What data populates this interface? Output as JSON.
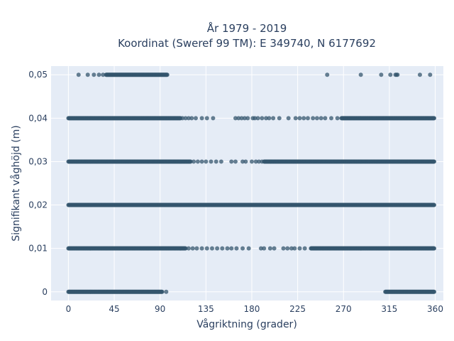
{
  "colors": {
    "plot_bg": "#e5ecf6",
    "grid": "#ffffff",
    "marker": "#34566e",
    "text": "#2a3f5f"
  },
  "chart_data": {
    "type": "scatter",
    "title_line1": "År 1979 - 2019",
    "title_line2": "Koordinat (Sweref 99 TM): E 349740, N 6177692",
    "xlabel": "Vågriktning (grader)",
    "ylabel": "Signifikant våghöjd (m)",
    "xlim": [
      -17,
      368
    ],
    "ylim": [
      -0.002,
      0.052
    ],
    "xticks": [
      0,
      45,
      90,
      135,
      180,
      225,
      270,
      315,
      360
    ],
    "xtick_labels": [
      "0",
      "45",
      "90",
      "135",
      "180",
      "225",
      "270",
      "315",
      "360"
    ],
    "yticks": [
      0,
      0.01,
      0.02,
      0.03,
      0.04,
      0.05
    ],
    "ytick_labels": [
      "0",
      "0,01",
      "0,02",
      "0,03",
      "0,04",
      "0,05"
    ],
    "grid": true,
    "marker_opacity": 0.75,
    "series": [
      {
        "y": 0.05,
        "dense_ranges": [
          [
            37,
            97
          ]
        ],
        "points": [
          10,
          19,
          25,
          30,
          34,
          254,
          287,
          307,
          316,
          321,
          322,
          323,
          345,
          355
        ]
      },
      {
        "y": 0.04,
        "dense_ranges": [
          [
            0,
            110
          ],
          [
            268,
            359
          ]
        ],
        "points": [
          112,
          115,
          118,
          121,
          125,
          131,
          136,
          142,
          164,
          167,
          170,
          173,
          176,
          181,
          183,
          186,
          190,
          194,
          197,
          201,
          207,
          216,
          223,
          227,
          231,
          235,
          240,
          244,
          248,
          252,
          258,
          264
        ]
      },
      {
        "y": 0.03,
        "dense_ranges": [
          [
            0,
            120
          ],
          [
            192,
            359
          ]
        ],
        "points": [
          123,
          127,
          131,
          135,
          140,
          145,
          150,
          160,
          164,
          171,
          174,
          180,
          184,
          187,
          190
        ]
      },
      {
        "y": 0.02,
        "dense_ranges": [
          [
            0,
            359
          ]
        ],
        "points": []
      },
      {
        "y": 0.01,
        "dense_ranges": [
          [
            0,
            115
          ],
          [
            238,
            359
          ]
        ],
        "points": [
          118,
          122,
          126,
          131,
          136,
          141,
          146,
          151,
          156,
          160,
          165,
          171,
          177,
          189,
          192,
          198,
          202,
          211,
          215,
          219,
          222,
          227,
          232
        ]
      },
      {
        "y": 0.0,
        "dense_ranges": [
          [
            0,
            92
          ],
          [
            311,
            359
          ]
        ],
        "points": [
          96
        ]
      }
    ]
  }
}
